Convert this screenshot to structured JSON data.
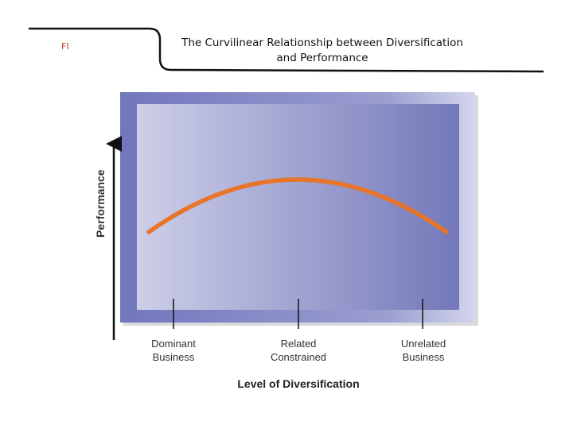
{
  "slide": {
    "label": "FI",
    "title_line1": "The Curvilinear Relationship between Diversification",
    "title_line2": "and Performance"
  },
  "diagram": {
    "y_axis_title": "Performance",
    "x_axis_title": "Level of Diversification",
    "categories": [
      {
        "line1": "Dominant",
        "line2": "Business"
      },
      {
        "line1": "Related",
        "line2": "Constrained"
      },
      {
        "line1": "Unrelated",
        "line2": "Business"
      }
    ],
    "curve_color": "#e8742a",
    "panel_outer_color": "#6f74bb",
    "panel_inner_gradient": [
      "#cdcfe8",
      "#7378b9"
    ]
  }
}
